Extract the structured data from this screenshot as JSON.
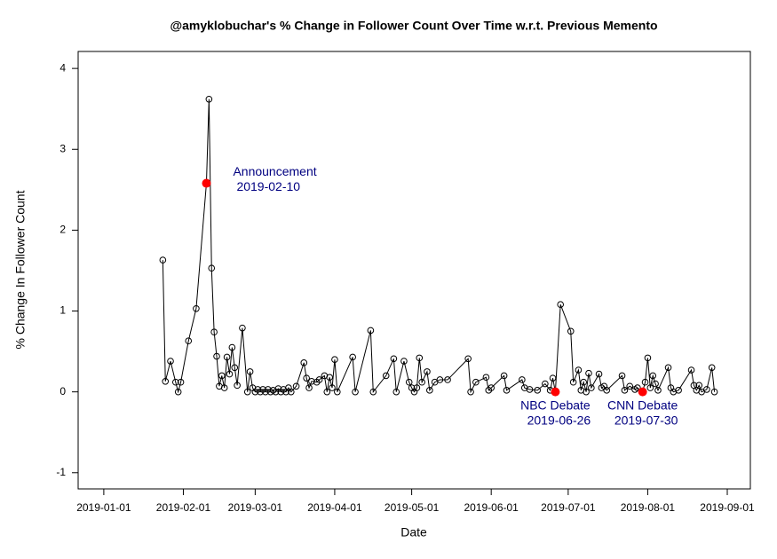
{
  "chart_data": {
    "type": "line",
    "title": "@amyklobuchar's % Change in Follower Count Over Time w.r.t. Previous Memento",
    "x_label": "Date",
    "y_label": "% Change In Follower Count",
    "xlim": [
      "2018-12-22",
      "2019-09-10"
    ],
    "xticks": [
      "2019-01-01",
      "2019-02-01",
      "2019-03-01",
      "2019-04-01",
      "2019-05-01",
      "2019-06-01",
      "2019-07-01",
      "2019-08-01",
      "2019-09-01"
    ],
    "ylim": [
      -1.2,
      4.21
    ],
    "yticks": [
      -1,
      0,
      1,
      2,
      3,
      4
    ],
    "series": [
      {
        "color": "#000000",
        "x": [
          "2019-01-24",
          "2019-01-25",
          "2019-01-27",
          "2019-01-29",
          "2019-01-30",
          "2019-01-31",
          "2019-02-03",
          "2019-02-06",
          "2019-02-10",
          "2019-02-11",
          "2019-02-12",
          "2019-02-13",
          "2019-02-14",
          "2019-02-15",
          "2019-02-16",
          "2019-02-17",
          "2019-02-18",
          "2019-02-19",
          "2019-02-20",
          "2019-02-21",
          "2019-02-22",
          "2019-02-24",
          "2019-02-26",
          "2019-02-27",
          "2019-02-28",
          "2019-03-01",
          "2019-03-02",
          "2019-03-03",
          "2019-03-04",
          "2019-03-05",
          "2019-03-06",
          "2019-03-07",
          "2019-03-08",
          "2019-03-09",
          "2019-03-10",
          "2019-03-11",
          "2019-03-12",
          "2019-03-13",
          "2019-03-14",
          "2019-03-15",
          "2019-03-17",
          "2019-03-20",
          "2019-03-21",
          "2019-03-22",
          "2019-03-23",
          "2019-03-25",
          "2019-03-26",
          "2019-03-28",
          "2019-03-29",
          "2019-03-30",
          "2019-03-31",
          "2019-04-01",
          "2019-04-02",
          "2019-04-08",
          "2019-04-09",
          "2019-04-15",
          "2019-04-16",
          "2019-04-21",
          "2019-04-24",
          "2019-04-25",
          "2019-04-28",
          "2019-04-30",
          "2019-05-01",
          "2019-05-02",
          "2019-05-03",
          "2019-05-04",
          "2019-05-05",
          "2019-05-07",
          "2019-05-08",
          "2019-05-10",
          "2019-05-12",
          "2019-05-15",
          "2019-05-23",
          "2019-05-24",
          "2019-05-26",
          "2019-05-30",
          "2019-05-31",
          "2019-06-01",
          "2019-06-06",
          "2019-06-07",
          "2019-06-13",
          "2019-06-14",
          "2019-06-16",
          "2019-06-19",
          "2019-06-22",
          "2019-06-24",
          "2019-06-25",
          "2019-06-26",
          "2019-06-28",
          "2019-07-02",
          "2019-07-03",
          "2019-07-05",
          "2019-07-06",
          "2019-07-07",
          "2019-07-08",
          "2019-07-09",
          "2019-07-10",
          "2019-07-13",
          "2019-07-14",
          "2019-07-15",
          "2019-07-16",
          "2019-07-22",
          "2019-07-23",
          "2019-07-25",
          "2019-07-27",
          "2019-07-28",
          "2019-07-30",
          "2019-07-31",
          "2019-08-01",
          "2019-08-02",
          "2019-08-03",
          "2019-08-04",
          "2019-08-05",
          "2019-08-09",
          "2019-08-10",
          "2019-08-11",
          "2019-08-13",
          "2019-08-18",
          "2019-08-19",
          "2019-08-20",
          "2019-08-21",
          "2019-08-22",
          "2019-08-24",
          "2019-08-26",
          "2019-08-27"
        ],
        "values": [
          1.63,
          0.13,
          0.38,
          0.12,
          0.0,
          0.12,
          0.63,
          1.03,
          2.58,
          3.62,
          1.53,
          0.74,
          0.44,
          0.07,
          0.2,
          0.05,
          0.43,
          0.22,
          0.55,
          0.3,
          0.08,
          0.79,
          0.0,
          0.25,
          0.05,
          0.0,
          0.03,
          0.0,
          0.03,
          0.0,
          0.03,
          0.0,
          0.02,
          0.0,
          0.04,
          0.0,
          0.03,
          0.0,
          0.05,
          0.0,
          0.07,
          0.36,
          0.17,
          0.05,
          0.13,
          0.12,
          0.15,
          0.2,
          0.0,
          0.18,
          0.05,
          0.4,
          0.0,
          0.43,
          0.0,
          0.76,
          0.0,
          0.2,
          0.41,
          0.0,
          0.38,
          0.12,
          0.05,
          0.0,
          0.05,
          0.42,
          0.12,
          0.25,
          0.02,
          0.12,
          0.15,
          0.15,
          0.41,
          0.0,
          0.12,
          0.18,
          0.02,
          0.05,
          0.2,
          0.02,
          0.15,
          0.05,
          0.03,
          0.02,
          0.1,
          0.02,
          0.17,
          0.0,
          1.08,
          0.75,
          0.12,
          0.27,
          0.02,
          0.12,
          0.0,
          0.23,
          0.05,
          0.22,
          0.05,
          0.07,
          0.02,
          0.2,
          0.02,
          0.07,
          0.03,
          0.05,
          0.0,
          0.12,
          0.42,
          0.05,
          0.2,
          0.1,
          0.02,
          0.3,
          0.05,
          0.0,
          0.02,
          0.27,
          0.08,
          0.02,
          0.08,
          0.0,
          0.03,
          0.3,
          0.0
        ]
      }
    ],
    "annotations": [
      {
        "text": "Announcement",
        "x": "2019-02-10",
        "y": 2.58
      },
      {
        "text": "NBC Debate",
        "x": "2019-06-26",
        "y": 0.0
      },
      {
        "text": "CNN Debate",
        "x": "2019-07-30",
        "y": 0.0
      }
    ],
    "annotation_color": "#ff0000",
    "annotation_text_color": "#000080"
  }
}
